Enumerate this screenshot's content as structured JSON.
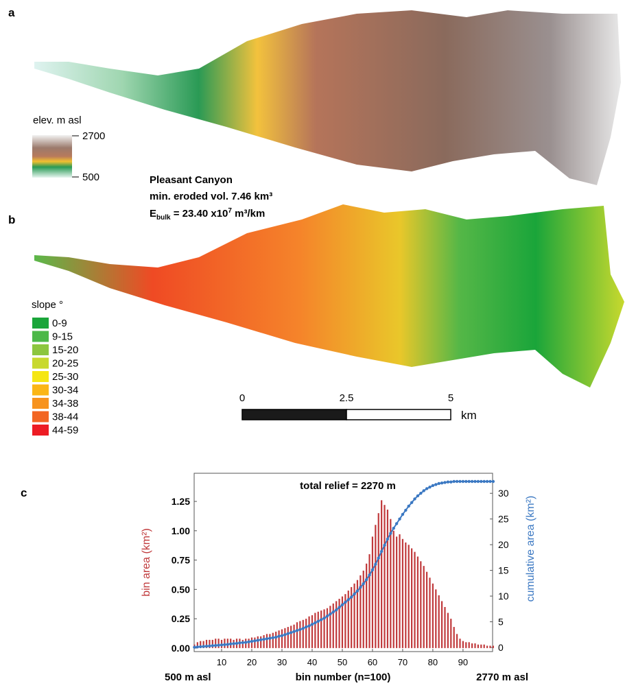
{
  "panel_a": {
    "label": "a",
    "legend_title": "elev. m asl",
    "legend_max": "2700",
    "legend_min": "500"
  },
  "annotation": {
    "name": "Pleasant Canyon",
    "volume": "min. eroded vol. 7.46 km³",
    "ebulk": {
      "symbol": "E",
      "subscript": "bulk",
      "text": " = 23.40 x10",
      "superscript": "7",
      "unit": " m³/km"
    }
  },
  "panel_b": {
    "label": "b",
    "legend_title": "slope °",
    "legend": [
      {
        "label": "0-9",
        "color": "#1aa53a"
      },
      {
        "label": "9-15",
        "color": "#4cb848"
      },
      {
        "label": "15-20",
        "color": "#8cc63f"
      },
      {
        "label": "20-25",
        "color": "#c8d92e"
      },
      {
        "label": "25-30",
        "color": "#f5e614"
      },
      {
        "label": "30-34",
        "color": "#fbb616"
      },
      {
        "label": "34-38",
        "color": "#f7931e"
      },
      {
        "label": "38-44",
        "color": "#f26522"
      },
      {
        "label": "44-59",
        "color": "#ed1c24"
      }
    ]
  },
  "scale_bar": {
    "ticks": [
      0,
      2.5,
      5
    ],
    "unit": "km"
  },
  "chart_data": {
    "type": "bar",
    "panel_label": "c",
    "title": "total relief = 2270 m",
    "x_label": "bin number (n=100)",
    "x_left_label": "500 m asl",
    "x_right_label": "2770 m asl",
    "y_label": "bin area (km²)",
    "y2_label": "cumulative area (km²)",
    "x": [
      1,
      2,
      3,
      4,
      5,
      6,
      7,
      8,
      9,
      10,
      11,
      12,
      13,
      14,
      15,
      16,
      17,
      18,
      19,
      20,
      21,
      22,
      23,
      24,
      25,
      26,
      27,
      28,
      29,
      30,
      31,
      32,
      33,
      34,
      35,
      36,
      37,
      38,
      39,
      40,
      41,
      42,
      43,
      44,
      45,
      46,
      47,
      48,
      49,
      50,
      51,
      52,
      53,
      54,
      55,
      56,
      57,
      58,
      59,
      60,
      61,
      62,
      63,
      64,
      65,
      66,
      67,
      68,
      69,
      70,
      71,
      72,
      73,
      74,
      75,
      76,
      77,
      78,
      79,
      80,
      81,
      82,
      83,
      84,
      85,
      86,
      87,
      88,
      89,
      90,
      91,
      92,
      93,
      94,
      95,
      96,
      97,
      98,
      99,
      100
    ],
    "xlim": [
      0.9,
      99.8
    ],
    "xticks": [
      10,
      20,
      30,
      40,
      50,
      60,
      70,
      80,
      90
    ],
    "ylim": [
      -0.03,
      1.49
    ],
    "yticks": [
      {
        "value": 0,
        "label": "0.00"
      },
      {
        "value": 0.25,
        "label": "0.25"
      },
      {
        "value": 0.5,
        "label": "0.50"
      },
      {
        "value": 0.75,
        "label": "0.75"
      },
      {
        "value": 1,
        "label": "1.00"
      },
      {
        "value": 1.25,
        "label": "1.25"
      }
    ],
    "y2lim": [
      -0.8,
      33.9
    ],
    "y2ticks": [
      0,
      5,
      10,
      15,
      20,
      25,
      30
    ],
    "series": [
      {
        "color": "#c0393b",
        "values": [
          0.03,
          0.05,
          0.06,
          0.06,
          0.07,
          0.07,
          0.07,
          0.08,
          0.08,
          0.07,
          0.08,
          0.08,
          0.08,
          0.07,
          0.08,
          0.08,
          0.07,
          0.08,
          0.08,
          0.09,
          0.09,
          0.1,
          0.1,
          0.11,
          0.12,
          0.12,
          0.13,
          0.14,
          0.15,
          0.16,
          0.17,
          0.18,
          0.19,
          0.2,
          0.22,
          0.23,
          0.24,
          0.25,
          0.27,
          0.28,
          0.3,
          0.31,
          0.32,
          0.33,
          0.34,
          0.36,
          0.38,
          0.4,
          0.42,
          0.44,
          0.46,
          0.49,
          0.52,
          0.55,
          0.58,
          0.62,
          0.66,
          0.72,
          0.8,
          0.95,
          1.05,
          1.15,
          1.26,
          1.22,
          1.18,
          1.1,
          1.0,
          0.95,
          0.97,
          0.93,
          0.9,
          0.88,
          0.85,
          0.82,
          0.78,
          0.74,
          0.7,
          0.65,
          0.6,
          0.55,
          0.5,
          0.45,
          0.4,
          0.35,
          0.3,
          0.25,
          0.18,
          0.12,
          0.08,
          0.06,
          0.05,
          0.05,
          0.04,
          0.04,
          0.03,
          0.03,
          0.03,
          0.02,
          0.02,
          0.02
        ]
      },
      {
        "color": "#3b78c2",
        "axis": "y2",
        "values": [
          0.05,
          0.1,
          0.15,
          0.2,
          0.25,
          0.3,
          0.35,
          0.4,
          0.45,
          0.5,
          0.55,
          0.6,
          0.7,
          0.75,
          0.8,
          0.9,
          0.95,
          1.0,
          1.1,
          1.2,
          1.3,
          1.4,
          1.5,
          1.6,
          1.7,
          1.8,
          1.9,
          2.0,
          2.2,
          2.3,
          2.5,
          2.7,
          2.9,
          3.1,
          3.3,
          3.5,
          3.7,
          4.0,
          4.2,
          4.5,
          4.8,
          5.1,
          5.4,
          5.7,
          6.1,
          6.5,
          6.9,
          7.3,
          7.8,
          8.3,
          8.8,
          9.3,
          9.8,
          10.4,
          11.0,
          11.7,
          12.4,
          13.2,
          14.1,
          15.1,
          16.2,
          17.4,
          18.7,
          19.9,
          21.1,
          22.2,
          23.2,
          24.1,
          25.0,
          25.9,
          26.7,
          27.5,
          28.2,
          28.9,
          29.5,
          30.0,
          30.5,
          30.9,
          31.2,
          31.5,
          31.7,
          31.9,
          32.0,
          32.1,
          32.2,
          32.2,
          32.3,
          32.3,
          32.3,
          32.3,
          32.3,
          32.3,
          32.3,
          32.3,
          32.3,
          32.3,
          32.3,
          32.3,
          32.3,
          32.3
        ]
      }
    ]
  }
}
